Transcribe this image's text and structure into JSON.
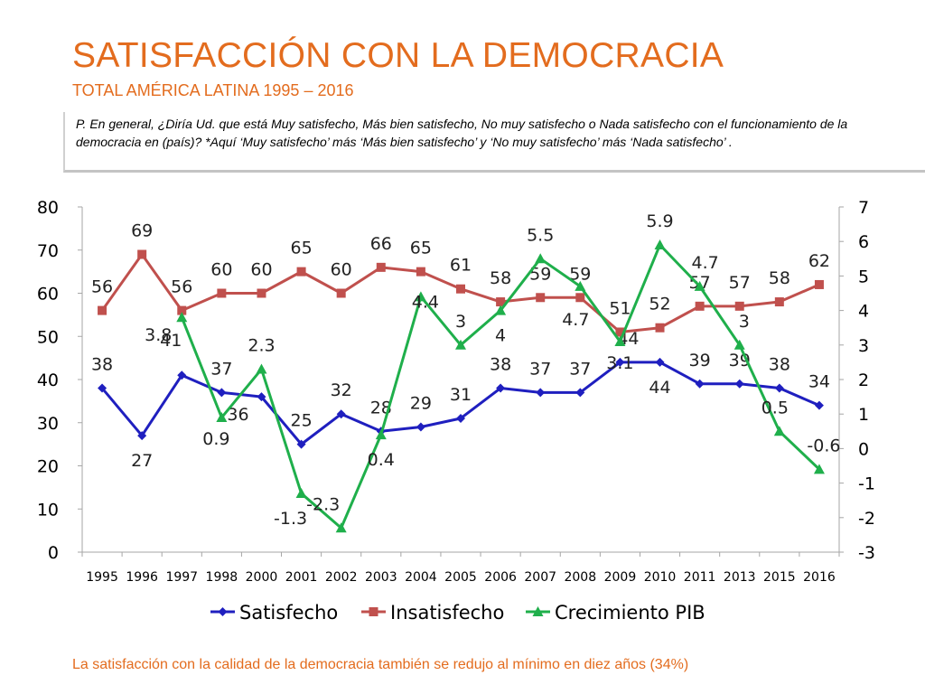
{
  "header": {
    "title": "SATISFACCIÓN CON LA DEMOCRACIA",
    "subtitle": "TOTAL AMÉRICA LATINA 1995 – 2016"
  },
  "question": "P. En general, ¿Diría Ud. que está Muy satisfecho, Más bien satisfecho, No muy satisfecho o Nada satisfecho con el funcionamiento de la democracia en (país)? *Aquí ‘Muy satisfecho’ más ‘Más bien satisfecho’ y ‘No muy satisfecho’ más ‘Nada satisfecho’ .",
  "footer": "La satisfacción con la calidad de la democracia también se redujo al mínimo en diez años (34%)",
  "colors": {
    "accent": "#E36C1E",
    "satisfecho": "#1F1FBF",
    "insatisfecho": "#C0504D",
    "pib": "#1FAF4B",
    "axis": "#A6A6A6"
  },
  "chart_data": {
    "type": "line",
    "categories": [
      "1995",
      "1996",
      "1997",
      "1998",
      "2000",
      "2001",
      "2002",
      "2003",
      "2004",
      "2005",
      "2006",
      "2007",
      "2008",
      "2009",
      "2010",
      "2011",
      "2013",
      "2015",
      "2016"
    ],
    "y_left": {
      "min": 0,
      "max": 80,
      "step": 10
    },
    "y_right": {
      "min": -3,
      "max": 7,
      "step": 1
    },
    "series": [
      {
        "name": "Satisfecho",
        "axis": "left",
        "marker": "diamond",
        "color": "#1F1FBF",
        "values": [
          38,
          27,
          41,
          37,
          36,
          25,
          32,
          28,
          29,
          31,
          38,
          37,
          37,
          44,
          44,
          39,
          39,
          38,
          34
        ],
        "labels": [
          "38",
          "27",
          "41",
          "37",
          "36",
          "25",
          "32",
          "28",
          "29",
          "31",
          "38",
          "37",
          "37",
          "44",
          "44",
          "39",
          "39",
          "38",
          "34"
        ]
      },
      {
        "name": "Insatisfecho",
        "axis": "left",
        "marker": "square",
        "color": "#C0504D",
        "values": [
          56,
          69,
          56,
          60,
          60,
          65,
          60,
          66,
          65,
          61,
          58,
          59,
          59,
          51,
          52,
          57,
          57,
          58,
          62
        ],
        "labels": [
          "56",
          "69",
          "56",
          "60",
          "60",
          "65",
          "60",
          "66",
          "65",
          "61",
          "58",
          "59",
          "59",
          "51",
          "52",
          "57",
          "57",
          "58",
          "62"
        ]
      },
      {
        "name": "Crecimiento PIB",
        "axis": "right",
        "marker": "triangle",
        "color": "#1FAF4B",
        "values": [
          null,
          null,
          3.8,
          0.9,
          2.3,
          -1.3,
          -2.3,
          0.4,
          4.4,
          3,
          4,
          5.5,
          4.7,
          3.1,
          5.9,
          4.7,
          3,
          0.5,
          -0.6
        ],
        "labels": [
          null,
          null,
          "3.8",
          "0.9",
          "2.3",
          "-1.3",
          "-2.3",
          "0.4",
          "4.4",
          "3",
          "4",
          "5.5",
          "4.7",
          "3.1",
          "5.9",
          "4.7",
          "3",
          "0.5",
          "-0.6"
        ]
      }
    ],
    "legend": [
      "Satisfecho",
      "Insatisfecho",
      "Crecimiento PIB"
    ],
    "legend_position": "bottom"
  }
}
